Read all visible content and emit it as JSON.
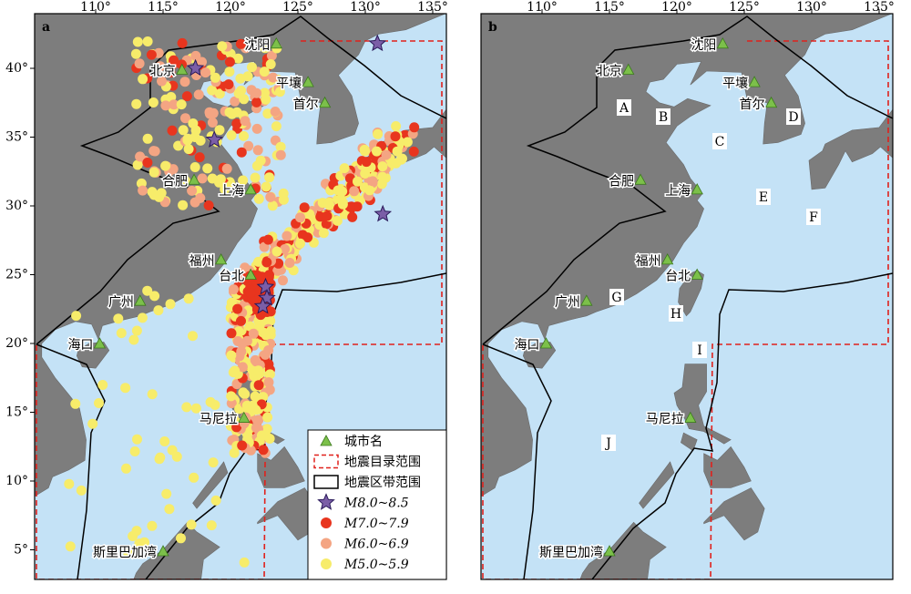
{
  "panels": [
    {
      "label": "a",
      "lon_ticks": [
        "110°",
        "115°",
        "120°",
        "125°",
        "130°",
        "135°"
      ],
      "lat_ticks": [
        "40°",
        "35°",
        "30°",
        "25°",
        "20°",
        "15°",
        "10°",
        "5°"
      ],
      "cities": [
        "北京",
        "沈阳",
        "平壤",
        "首尔",
        "合肥",
        "上海",
        "福州",
        "台北",
        "广州",
        "海口",
        "马尼拉",
        "斯里巴加湾"
      ]
    },
    {
      "label": "b",
      "lon_ticks": [
        "110°",
        "115°",
        "120°",
        "125°",
        "130°",
        "135°"
      ],
      "cities": [
        "北京",
        "沈阳",
        "平壤",
        "首尔",
        "合肥",
        "上海",
        "福州",
        "台北",
        "广州",
        "海口",
        "马尼拉",
        "斯里巴加湾"
      ],
      "zones": [
        "A",
        "B",
        "C",
        "D",
        "E",
        "F",
        "G",
        "H",
        "I",
        "J"
      ]
    }
  ],
  "legend": {
    "items": [
      "城市名",
      "地震目录范围",
      "地震区带范围",
      "M8.0~8.5",
      "M7.0~7.9",
      "M6.0~6.9",
      "M5.0~5.9"
    ]
  }
}
